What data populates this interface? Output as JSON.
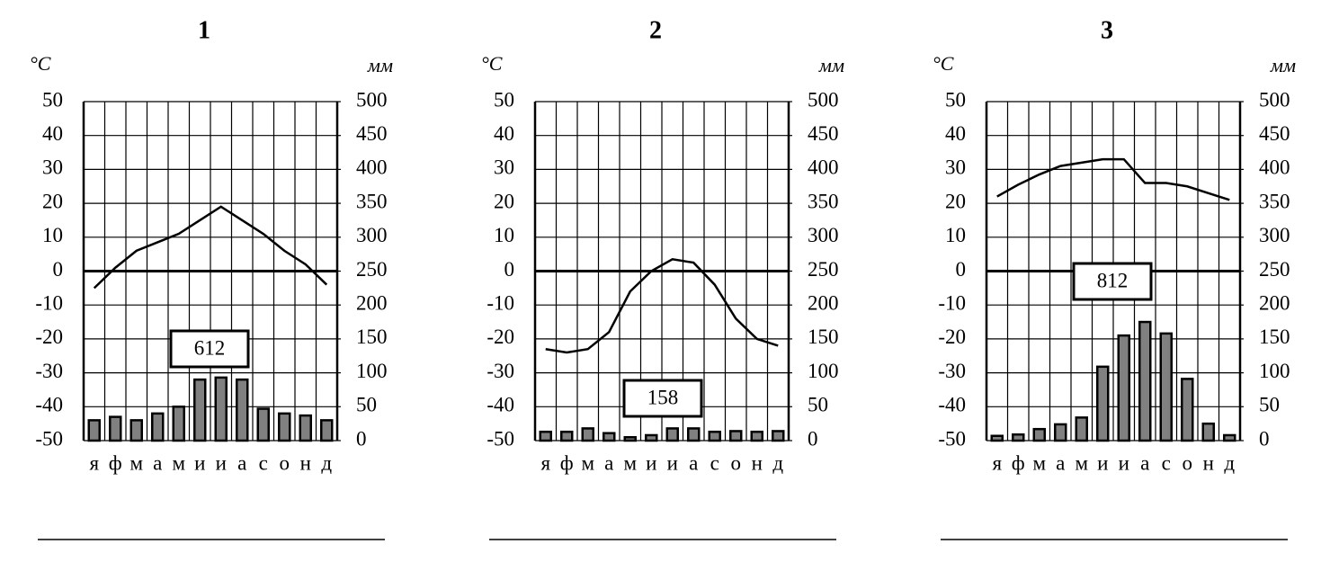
{
  "chart_data": [
    {
      "type": "climatogram",
      "title": "1",
      "y_label": "°C",
      "y2_label": "мм",
      "categories": [
        "я",
        "ф",
        "м",
        "а",
        "м",
        "и",
        "и",
        "а",
        "с",
        "о",
        "н",
        "д"
      ],
      "series": [
        {
          "type": "line",
          "color": "#000000",
          "values": [
            -5,
            1,
            6,
            8.5,
            11,
            15,
            19,
            15,
            11,
            6,
            2,
            -4
          ]
        },
        {
          "type": "bar",
          "axis": "y2",
          "color": "#808080",
          "values": [
            30,
            35,
            30,
            40,
            50,
            90,
            93,
            90,
            47,
            40,
            37,
            30
          ]
        }
      ],
      "annotation": 612,
      "ylim": [
        -50,
        50
      ],
      "yticks": [
        -50,
        -40,
        -30,
        -20,
        -10,
        0,
        10,
        20,
        30,
        40,
        50
      ],
      "y2lim": [
        0,
        500
      ],
      "y2ticks": [
        0,
        50,
        100,
        150,
        200,
        250,
        300,
        350,
        400,
        450,
        500
      ],
      "grid": true
    },
    {
      "type": "climatogram",
      "title": "2",
      "y_label": "°C",
      "y2_label": "мм",
      "categories": [
        "я",
        "ф",
        "м",
        "а",
        "м",
        "и",
        "и",
        "а",
        "с",
        "о",
        "н",
        "д"
      ],
      "series": [
        {
          "type": "line",
          "color": "#000000",
          "values": [
            -23,
            -24,
            -23,
            -18,
            -6,
            0,
            3.5,
            2.5,
            -4,
            -14,
            -20,
            -22
          ]
        },
        {
          "type": "bar",
          "axis": "y2",
          "color": "#808080",
          "values": [
            13,
            13,
            18,
            11,
            5,
            8,
            18,
            18,
            13,
            14,
            13,
            14
          ]
        }
      ],
      "annotation": 158,
      "ylim": [
        -50,
        50
      ],
      "yticks": [
        -50,
        -40,
        -30,
        -20,
        -10,
        0,
        10,
        20,
        30,
        40,
        50
      ],
      "y2lim": [
        0,
        500
      ],
      "y2ticks": [
        0,
        50,
        100,
        150,
        200,
        250,
        300,
        350,
        400,
        450,
        500
      ],
      "grid": true
    },
    {
      "type": "climatogram",
      "title": "3",
      "y_label": "°C",
      "y2_label": "мм",
      "categories": [
        "я",
        "ф",
        "м",
        "а",
        "м",
        "и",
        "и",
        "а",
        "с",
        "о",
        "н",
        "д"
      ],
      "series": [
        {
          "type": "line",
          "color": "#000000",
          "values": [
            22,
            25.5,
            28.5,
            31,
            32,
            33,
            33,
            26,
            26,
            25,
            23,
            21
          ]
        },
        {
          "type": "bar",
          "axis": "y2",
          "color": "#808080",
          "values": [
            7,
            9,
            17,
            24,
            34,
            109,
            155,
            175,
            158,
            91,
            25,
            8
          ]
        }
      ],
      "annotation": 812,
      "ylim": [
        -50,
        50
      ],
      "yticks": [
        -50,
        -40,
        -30,
        -20,
        -10,
        0,
        10,
        20,
        30,
        40,
        50
      ],
      "y2lim": [
        0,
        500
      ],
      "y2ticks": [
        0,
        50,
        100,
        150,
        200,
        250,
        300,
        350,
        400,
        450,
        500
      ],
      "grid": true
    }
  ]
}
